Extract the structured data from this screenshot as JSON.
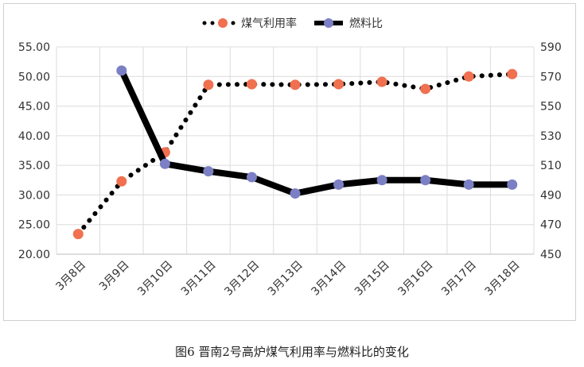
{
  "caption": "图6  晋南2号高炉煤气利用率与燃料比的变化",
  "chart_data": {
    "type": "line",
    "title": "",
    "categories": [
      "3月8日",
      "3月9日",
      "3月10日",
      "3月11日",
      "3月12日",
      "3月13日",
      "3月14日",
      "3月15日",
      "3月16日",
      "3月17日",
      "3月18日"
    ],
    "series": [
      {
        "name": "煤气利用率",
        "axis": "left",
        "style": "dotted",
        "marker_color": "#F07050",
        "line_color": "#000000",
        "values": [
          23.4,
          32.3,
          37.2,
          48.6,
          48.7,
          48.6,
          48.7,
          49.1,
          47.9,
          50.0,
          50.4
        ]
      },
      {
        "name": "燃料比",
        "axis": "right",
        "style": "solid",
        "marker_color": "#7B7FC4",
        "line_color": "#000000",
        "values": [
          null,
          574,
          511,
          506,
          502,
          491,
          497,
          500,
          500,
          497,
          497
        ]
      }
    ],
    "y_left": {
      "min": 20,
      "max": 55,
      "step": 5,
      "ticks": [
        "20.00",
        "25.00",
        "30.00",
        "35.00",
        "40.00",
        "45.00",
        "50.00",
        "55.00"
      ]
    },
    "y_right": {
      "min": 450,
      "max": 590,
      "step": 20,
      "ticks": [
        "450",
        "470",
        "490",
        "510",
        "530",
        "550",
        "570",
        "590"
      ]
    },
    "grid": true,
    "legend": "top-center"
  }
}
